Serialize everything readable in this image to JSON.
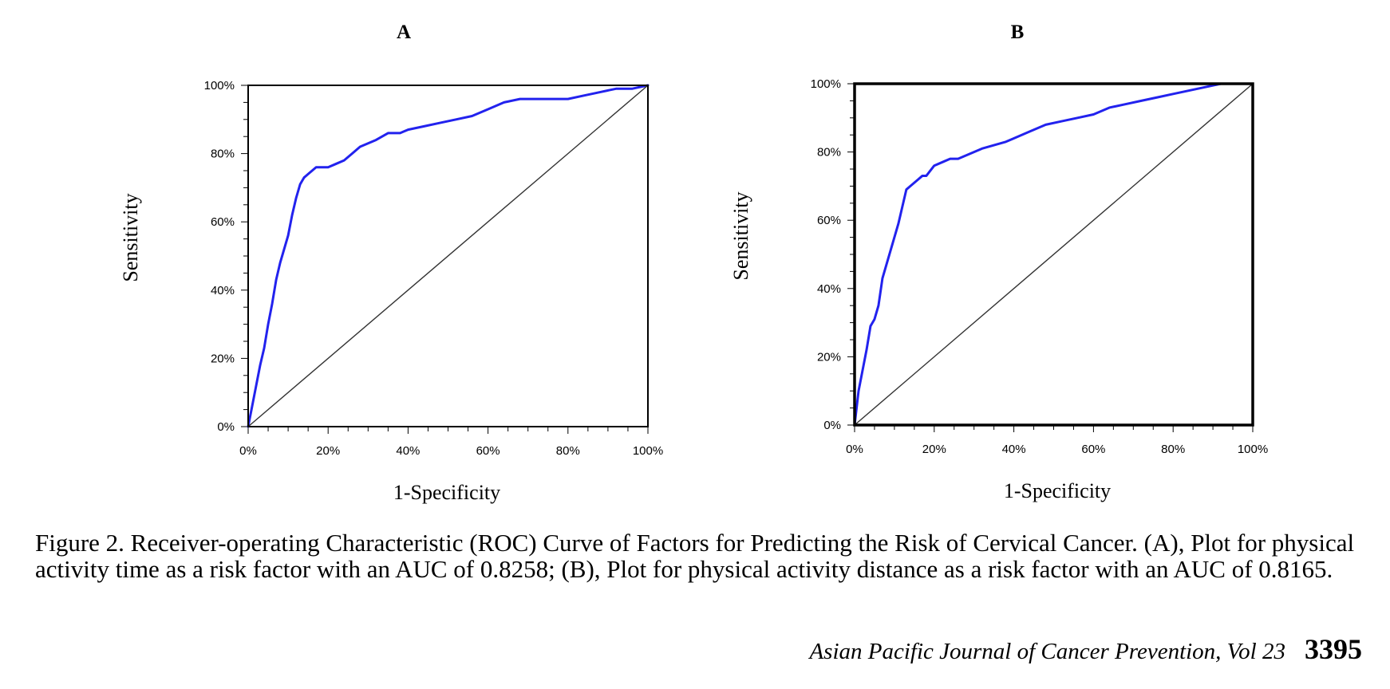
{
  "chart_data": [
    {
      "type": "line",
      "title": "A",
      "xlabel": "1-Specificity",
      "ylabel": "Sensitivity",
      "xlim": [
        0,
        100
      ],
      "ylim": [
        0,
        100
      ],
      "xticks": [
        "0%",
        "20%",
        "40%",
        "60%",
        "80%",
        "100%"
      ],
      "yticks": [
        "0%",
        "20%",
        "40%",
        "60%",
        "80%",
        "100%"
      ],
      "series": [
        {
          "role": "roc",
          "color": "#2222ee",
          "x": [
            0,
            1,
            2,
            3,
            4,
            5,
            6,
            7,
            8,
            9,
            10,
            11,
            12,
            13,
            14,
            15,
            16,
            17,
            18,
            20,
            22,
            24,
            26,
            28,
            30,
            32,
            35,
            38,
            40,
            44,
            48,
            52,
            56,
            60,
            64,
            68,
            72,
            76,
            80,
            84,
            88,
            92,
            96,
            100
          ],
          "y": [
            0,
            6,
            12,
            18,
            23,
            30,
            36,
            43,
            48,
            52,
            56,
            62,
            67,
            71,
            73,
            74,
            75,
            76,
            76,
            76,
            77,
            78,
            80,
            82,
            83,
            84,
            86,
            86,
            87,
            88,
            89,
            90,
            91,
            93,
            95,
            96,
            96,
            96,
            96,
            97,
            98,
            99,
            99,
            100
          ]
        },
        {
          "role": "reference",
          "color": "#333333",
          "x": [
            0,
            100
          ],
          "y": [
            0,
            100
          ]
        }
      ]
    },
    {
      "type": "line",
      "title": "B",
      "xlabel": "1-Specificity",
      "ylabel": "Sensitivity",
      "xlim": [
        0,
        100
      ],
      "ylim": [
        0,
        100
      ],
      "xticks": [
        "0%",
        "20%",
        "40%",
        "60%",
        "80%",
        "100%"
      ],
      "yticks": [
        "0%",
        "20%",
        "40%",
        "60%",
        "80%",
        "100%"
      ],
      "series": [
        {
          "role": "roc",
          "color": "#2222ee",
          "x": [
            0,
            1,
            2,
            3,
            4,
            5,
            6,
            7,
            8,
            9,
            10,
            11,
            12,
            13,
            14,
            15,
            16,
            17,
            18,
            20,
            22,
            24,
            26,
            28,
            30,
            32,
            35,
            38,
            40,
            44,
            48,
            52,
            56,
            60,
            64,
            68,
            72,
            76,
            80,
            84,
            88,
            92,
            96,
            100
          ],
          "y": [
            0,
            10,
            16,
            22,
            29,
            31,
            35,
            43,
            47,
            51,
            55,
            59,
            64,
            69,
            70,
            71,
            72,
            73,
            73,
            76,
            77,
            78,
            78,
            79,
            80,
            81,
            82,
            83,
            84,
            86,
            88,
            89,
            90,
            91,
            93,
            94,
            95,
            96,
            97,
            98,
            99,
            100,
            100,
            100
          ]
        },
        {
          "role": "reference",
          "color": "#333333",
          "x": [
            0,
            100
          ],
          "y": [
            0,
            100
          ]
        }
      ]
    }
  ],
  "caption": "Figure 2. Receiver-operating Characteristic (ROC) Curve of Factors for Predicting the Risk of Cervical Cancer. (A), Plot for physical activity time as a risk factor with an AUC of 0.8258; (B), Plot for physical activity distance as a risk factor with an AUC of 0.8165.",
  "footer": {
    "journal": "Asian Pacific Journal of Cancer Prevention, Vol 23",
    "page": "3395"
  }
}
